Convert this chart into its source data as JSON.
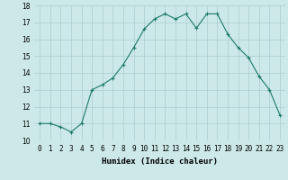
{
  "x": [
    0,
    1,
    2,
    3,
    4,
    5,
    6,
    7,
    8,
    9,
    10,
    11,
    12,
    13,
    14,
    15,
    16,
    17,
    18,
    19,
    20,
    21,
    22,
    23
  ],
  "y": [
    11.0,
    11.0,
    10.8,
    10.5,
    11.0,
    13.0,
    13.3,
    13.7,
    14.5,
    15.5,
    16.6,
    17.2,
    17.5,
    17.2,
    17.5,
    16.65,
    17.5,
    17.5,
    16.3,
    15.5,
    14.9,
    13.8,
    13.0,
    11.5
  ],
  "xlabel": "Humidex (Indice chaleur)",
  "xlim": [
    -0.5,
    23.5
  ],
  "ylim": [
    10,
    18
  ],
  "yticks": [
    10,
    11,
    12,
    13,
    14,
    15,
    16,
    17,
    18
  ],
  "xtick_labels": [
    "0",
    "1",
    "2",
    "3",
    "4",
    "5",
    "6",
    "7",
    "8",
    "9",
    "10",
    "11",
    "12",
    "13",
    "14",
    "15",
    "16",
    "17",
    "18",
    "19",
    "20",
    "21",
    "22",
    "23"
  ],
  "line_color": "#1a7a6a",
  "marker": "+",
  "bg_color": "#cde8e8",
  "grid_color": "#aacece",
  "label_fontsize": 6.5,
  "tick_fontsize": 5.5
}
